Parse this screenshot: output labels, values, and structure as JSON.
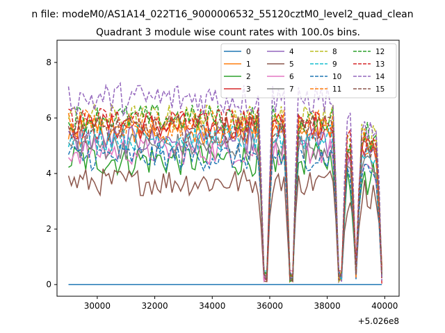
{
  "chart_data": {
    "type": "line",
    "suptitle": "n file: modeM0/AS1A14_022T16_9000006532_55120cztM0_level2_quad_clean",
    "title": "Quadrant 3 module wise count rates with 100.0s bins.",
    "xlabel": "",
    "ylabel": "",
    "x_offset_label": "+5.026e8",
    "xlim": [
      28600,
      40500
    ],
    "ylim": [
      -0.42,
      8.8
    ],
    "xticks": [
      30000,
      32000,
      34000,
      36000,
      38000,
      40000
    ],
    "xtick_labels": [
      "30000",
      "32000",
      "34000",
      "36000",
      "38000",
      "40000"
    ],
    "yticks": [
      0,
      2,
      4,
      6,
      8
    ],
    "ytick_labels": [
      "0",
      "2",
      "4",
      "6",
      "8"
    ],
    "grid": false,
    "legend_position": "top-right",
    "legend_columns": 4,
    "x_start": 29000,
    "x_end": 39900,
    "bin_width": 100,
    "valley_positions": [
      35850,
      36750,
      38450,
      39000,
      39950
    ],
    "representative_series": [
      {
        "x": [
          29000,
          29200,
          29400,
          29800,
          30200,
          30600,
          31000,
          31400,
          31800,
          32200,
          32600,
          33000,
          33400,
          33800,
          34200,
          34600,
          35000,
          35400,
          35800,
          35850,
          36000,
          36300,
          36600,
          36750,
          36900,
          37200,
          37600,
          38000,
          38300,
          38450,
          38600,
          38900,
          39000,
          39200,
          39500,
          39800,
          39950
        ],
        "y": [
          5.2,
          6.0,
          5.6,
          5.0,
          4.8,
          5.1,
          4.9,
          5.3,
          5.0,
          5.2,
          5.1,
          5.0,
          4.9,
          5.2,
          5.4,
          5.8,
          5.3,
          5.1,
          4.8,
          1.4,
          4.6,
          4.5,
          4.3,
          0.1,
          4.8,
          4.4,
          4.2,
          4.3,
          3.8,
          0.05,
          2.5,
          3.0,
          0.4,
          3.6,
          4.8,
          4.1,
          0.3
        ]
      }
    ],
    "series": [
      {
        "name": "0",
        "color": "#1f77b4",
        "dash": "solid",
        "mean": 0.0,
        "amplitude": 0.0,
        "x_range": [
          29000,
          39900
        ]
      },
      {
        "name": "1",
        "color": "#ff7f0e",
        "dash": "solid",
        "mean": 5.5,
        "amplitude": 0.5,
        "x_range": [
          29000,
          39900
        ]
      },
      {
        "name": "2",
        "color": "#2ca02c",
        "dash": "solid",
        "mean": 4.5,
        "amplitude": 0.6,
        "x_range": [
          29000,
          39900
        ]
      },
      {
        "name": "3",
        "color": "#d62728",
        "dash": "solid",
        "mean": 5.7,
        "amplitude": 0.5,
        "x_range": [
          29000,
          39900
        ]
      },
      {
        "name": "4",
        "color": "#9467bd",
        "dash": "solid",
        "mean": 5.2,
        "amplitude": 0.5,
        "x_range": [
          29000,
          39900
        ]
      },
      {
        "name": "5",
        "color": "#8c564b",
        "dash": "solid",
        "mean": 3.7,
        "amplitude": 0.5,
        "x_range": [
          29000,
          39900
        ]
      },
      {
        "name": "6",
        "color": "#e377c2",
        "dash": "solid",
        "mean": 4.8,
        "amplitude": 0.5,
        "x_range": [
          29000,
          39900
        ]
      },
      {
        "name": "7",
        "color": "#7f7f7f",
        "dash": "solid",
        "mean": 5.0,
        "amplitude": 0.5,
        "x_range": [
          29000,
          39900
        ]
      },
      {
        "name": "8",
        "color": "#bcbd22",
        "dash": "dashed",
        "mean": 6.0,
        "amplitude": 0.5,
        "x_range": [
          29000,
          39900
        ]
      },
      {
        "name": "9",
        "color": "#17becf",
        "dash": "dashed",
        "mean": 5.3,
        "amplitude": 0.5,
        "x_range": [
          29000,
          39900
        ]
      },
      {
        "name": "10",
        "color": "#1f77b4",
        "dash": "dashed",
        "mean": 4.6,
        "amplitude": 0.5,
        "x_range": [
          29000,
          39900
        ]
      },
      {
        "name": "11",
        "color": "#ff7f0e",
        "dash": "dashed",
        "mean": 5.8,
        "amplitude": 0.5,
        "x_range": [
          29000,
          39900
        ]
      },
      {
        "name": "12",
        "color": "#2ca02c",
        "dash": "dashed",
        "mean": 6.0,
        "amplitude": 0.5,
        "x_range": [
          29000,
          39900
        ]
      },
      {
        "name": "13",
        "color": "#d62728",
        "dash": "dashed",
        "mean": 5.9,
        "amplitude": 0.5,
        "x_range": [
          29000,
          39900
        ]
      },
      {
        "name": "14",
        "color": "#9467bd",
        "dash": "dashed",
        "mean": 6.7,
        "amplitude": 0.6,
        "x_range": [
          29000,
          39900
        ]
      },
      {
        "name": "15",
        "color": "#8c564b",
        "dash": "dashed",
        "mean": 5.6,
        "amplitude": 0.5,
        "x_range": [
          29000,
          39900
        ]
      }
    ]
  }
}
